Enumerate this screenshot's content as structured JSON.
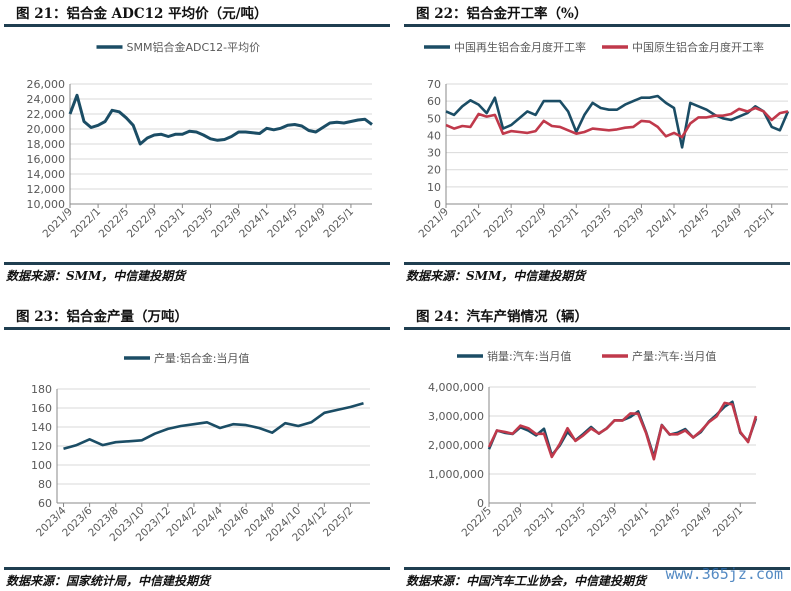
{
  "colors": {
    "blue": "#1b4d65",
    "red": "#c0394b",
    "grid": "#d9d9d9",
    "axis_text": "#595959"
  },
  "watermark": "www.365jz.com",
  "chart_data": [
    {
      "id": "fig21",
      "type": "line",
      "title": "图 21：铝合金 ADC12 平均价（元/吨）",
      "source": "数据来源：SMM，中信建投期货",
      "ylim": [
        10000,
        26000
      ],
      "yticks": [
        "10,000",
        "12,000",
        "14,000",
        "16,000",
        "18,000",
        "20,000",
        "22,000",
        "24,000",
        "26,000"
      ],
      "ytick_values": [
        10000,
        12000,
        14000,
        16000,
        18000,
        20000,
        22000,
        24000,
        26000
      ],
      "x": [
        "2021/9",
        "2021/10",
        "2021/11",
        "2021/12",
        "2022/1",
        "2022/2",
        "2022/3",
        "2022/4",
        "2022/5",
        "2022/6",
        "2022/7",
        "2022/8",
        "2022/9",
        "2022/10",
        "2022/11",
        "2022/12",
        "2023/1",
        "2023/2",
        "2023/3",
        "2023/4",
        "2023/5",
        "2023/6",
        "2023/7",
        "2023/8",
        "2023/9",
        "2023/10",
        "2023/11",
        "2023/12",
        "2024/1",
        "2024/2",
        "2024/3",
        "2024/4",
        "2024/5",
        "2024/6",
        "2024/7",
        "2024/8",
        "2024/9",
        "2024/10",
        "2024/11",
        "2024/12",
        "2025/1",
        "2025/2",
        "2025/3",
        "2025/4"
      ],
      "xtick_labels": [
        "2021/9",
        "2022/1",
        "2022/5",
        "2022/9",
        "2023/1",
        "2023/5",
        "2023/9",
        "2024/1",
        "2024/5",
        "2024/9",
        "2025/1"
      ],
      "grid": true,
      "legend": "top-center",
      "series": [
        {
          "name": "SMM铝合金ADC12-平均价",
          "color": "#1b4d65",
          "values": [
            22000,
            24500,
            21000,
            20200,
            20500,
            21000,
            22500,
            22300,
            21500,
            20500,
            18000,
            18800,
            19200,
            19300,
            19000,
            19300,
            19300,
            19700,
            19600,
            19200,
            18700,
            18500,
            18600,
            19000,
            19600,
            19600,
            19500,
            19400,
            20100,
            19900,
            20100,
            20500,
            20600,
            20400,
            19800,
            19600,
            20200,
            20800,
            20900,
            20800,
            21000,
            21200,
            21300,
            20600
          ]
        }
      ]
    },
    {
      "id": "fig22",
      "type": "line",
      "title": "图 22：铝合金开工率（%）",
      "source": "数据来源：SMM，中信建投期货",
      "ylim": [
        0,
        70
      ],
      "yticks": [
        "0",
        "10",
        "20",
        "30",
        "40",
        "50",
        "60",
        "70"
      ],
      "ytick_values": [
        0,
        10,
        20,
        30,
        40,
        50,
        60,
        70
      ],
      "x": [
        "2021/9",
        "2021/10",
        "2021/11",
        "2021/12",
        "2022/1",
        "2022/2",
        "2022/3",
        "2022/4",
        "2022/5",
        "2022/6",
        "2022/7",
        "2022/8",
        "2022/9",
        "2022/10",
        "2022/11",
        "2022/12",
        "2023/1",
        "2023/2",
        "2023/3",
        "2023/4",
        "2023/5",
        "2023/6",
        "2023/7",
        "2023/8",
        "2023/9",
        "2023/10",
        "2023/11",
        "2023/12",
        "2024/1",
        "2024/2",
        "2024/3",
        "2024/4",
        "2024/5",
        "2024/6",
        "2024/7",
        "2024/8",
        "2024/9",
        "2024/10",
        "2024/11",
        "2024/12",
        "2025/1",
        "2025/2",
        "2025/3"
      ],
      "xtick_labels": [
        "2021/9",
        "2022/1",
        "2022/5",
        "2022/9",
        "2023/1",
        "2023/5",
        "2023/9",
        "2024/1",
        "2024/5",
        "2024/9",
        "2025/1"
      ],
      "grid": true,
      "legend": "top-center",
      "series": [
        {
          "name": "中国再生铝合金月度开工率",
          "color": "#1b4d65",
          "values": [
            54,
            52,
            57,
            60.5,
            58,
            53,
            62,
            44,
            46,
            50,
            54,
            52,
            60,
            60,
            60,
            54,
            42,
            52,
            59,
            56,
            55,
            55,
            58,
            60,
            62,
            62,
            63,
            59,
            56,
            33,
            59,
            57,
            55,
            52,
            50,
            49,
            51,
            53,
            57,
            54,
            45,
            43,
            54
          ]
        },
        {
          "name": "中国原生铝合金月度开工率",
          "color": "#c0394b",
          "values": [
            46,
            44,
            45.5,
            45,
            52.5,
            51,
            52,
            41,
            42.5,
            42,
            41.5,
            42.5,
            48.5,
            45.5,
            45,
            43,
            41,
            42,
            44,
            43.5,
            43,
            43.5,
            44.5,
            45,
            48.5,
            48,
            45,
            39.5,
            41.5,
            39,
            47,
            50.5,
            50.5,
            51.5,
            51.5,
            52.5,
            55.5,
            54,
            56,
            54,
            49,
            53,
            54
          ]
        }
      ]
    },
    {
      "id": "fig23",
      "type": "line",
      "title": "图 23：铝合金产量（万吨）",
      "source": "数据来源：国家统计局，中信建投期货",
      "ylim": [
        60,
        180
      ],
      "yticks": [
        "60",
        "80",
        "100",
        "120",
        "140",
        "160",
        "180"
      ],
      "ytick_values": [
        60,
        80,
        100,
        120,
        140,
        160,
        180
      ],
      "x": [
        "2023/4",
        "2023/5",
        "2023/6",
        "2023/7",
        "2023/8",
        "2023/9",
        "2023/10",
        "2023/11",
        "2023/12",
        "2024/1",
        "2024/2",
        "2024/3",
        "2024/4",
        "2024/5",
        "2024/6",
        "2024/7",
        "2024/8",
        "2024/9",
        "2024/10",
        "2024/11",
        "2024/12",
        "2025/1",
        "2025/2",
        "2025/3"
      ],
      "xtick_labels": [
        "2023/4",
        "2023/6",
        "2023/8",
        "2023/10",
        "2023/12",
        "2024/2",
        "2024/4",
        "2024/6",
        "2024/8",
        "2024/10",
        "2024/12",
        "2025/2"
      ],
      "grid": true,
      "legend": "top-center",
      "series": [
        {
          "name": "产量:铝合金:当月值",
          "color": "#1b4d65",
          "values": [
            117,
            121,
            127,
            121,
            124,
            125,
            126,
            133,
            138,
            141,
            143,
            145,
            139,
            143,
            142,
            139,
            134,
            144,
            141,
            145,
            155,
            158,
            161,
            165
          ]
        }
      ]
    },
    {
      "id": "fig24",
      "type": "line",
      "title": "图 24：汽车产销情况（辆）",
      "source": "数据来源：中国汽车工业协会，中信建投期货",
      "ylim": [
        0,
        4000000
      ],
      "yticks": [
        "0",
        "1,000,000",
        "2,000,000",
        "3,000,000",
        "4,000,000"
      ],
      "ytick_values": [
        0,
        1000000,
        2000000,
        3000000,
        4000000
      ],
      "x": [
        "2022/5",
        "2022/6",
        "2022/7",
        "2022/8",
        "2022/9",
        "2022/10",
        "2022/11",
        "2022/12",
        "2023/1",
        "2023/2",
        "2023/3",
        "2023/4",
        "2023/5",
        "2023/6",
        "2023/7",
        "2023/8",
        "2023/9",
        "2023/10",
        "2023/11",
        "2023/12",
        "2024/1",
        "2024/2",
        "2024/3",
        "2024/4",
        "2024/5",
        "2024/6",
        "2024/7",
        "2024/8",
        "2024/9",
        "2024/10",
        "2024/11",
        "2024/12",
        "2025/1",
        "2025/2",
        "2025/3"
      ],
      "xtick_labels": [
        "2022/5",
        "2022/9",
        "2023/1",
        "2023/5",
        "2023/9",
        "2024/1",
        "2024/5",
        "2024/9",
        "2025/1"
      ],
      "grid": true,
      "legend": "top-center",
      "series": [
        {
          "name": "销量:汽车:当月值",
          "color": "#1b4d65",
          "values": [
            1860000,
            2500000,
            2420000,
            2380000,
            2610000,
            2500000,
            2330000,
            2560000,
            1650000,
            1980000,
            2450000,
            2160000,
            2380000,
            2620000,
            2390000,
            2580000,
            2850000,
            2850000,
            2970000,
            3160000,
            2440000,
            1590000,
            2690000,
            2360000,
            2420000,
            2550000,
            2260000,
            2450000,
            2810000,
            3050000,
            3320000,
            3490000,
            2420000,
            2130000,
            2920000
          ]
        },
        {
          "name": "产量:汽车:当月值",
          "color": "#c0394b",
          "values": [
            1930000,
            2500000,
            2450000,
            2390000,
            2670000,
            2580000,
            2380000,
            2390000,
            1590000,
            2030000,
            2580000,
            2140000,
            2330000,
            2570000,
            2400000,
            2570000,
            2850000,
            2840000,
            3090000,
            3080000,
            2410000,
            1510000,
            2680000,
            2370000,
            2370000,
            2500000,
            2260000,
            2490000,
            2790000,
            2990000,
            3450000,
            3400000,
            2450000,
            2100000,
            3000000
          ]
        }
      ]
    }
  ]
}
